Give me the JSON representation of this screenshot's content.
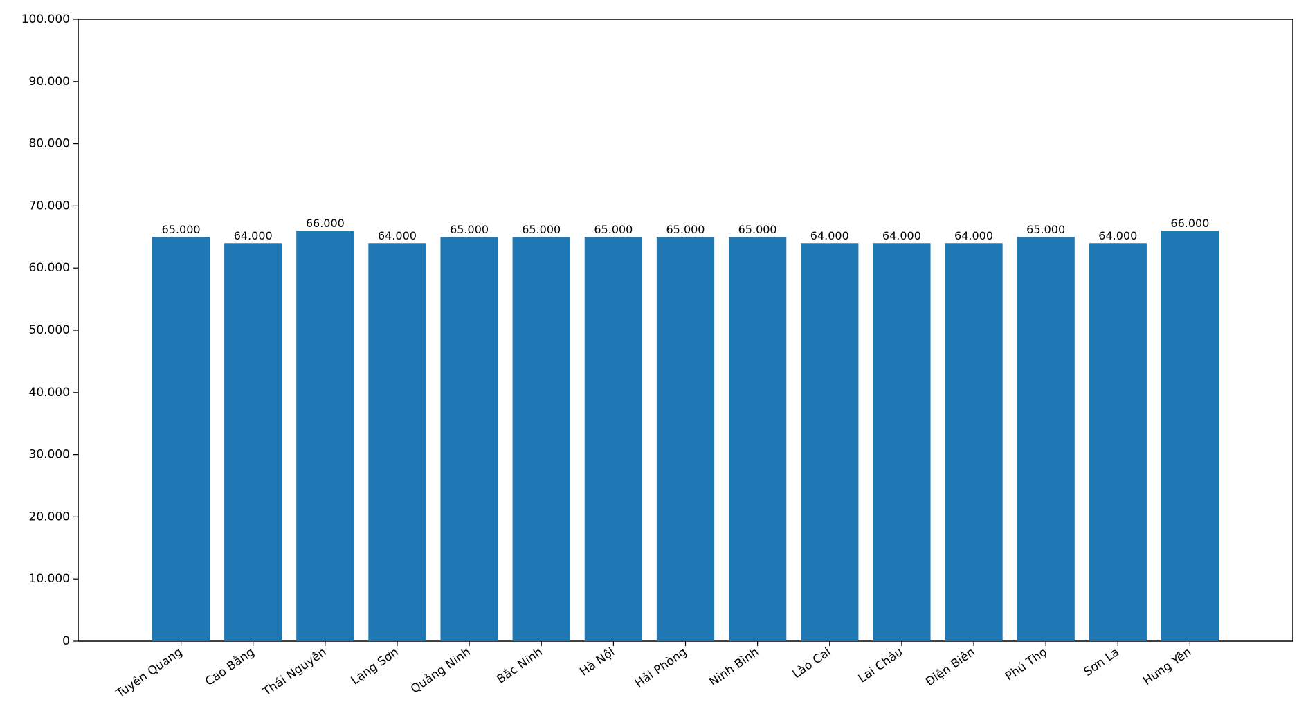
{
  "chart_data": {
    "type": "bar",
    "categories": [
      "Tuyên Quang",
      "Cao Bằng",
      "Thái Nguyên",
      "Lạng Sơn",
      "Quảng Ninh",
      "Bắc Ninh",
      "Hà Nội",
      "Hải Phòng",
      "Ninh Bình",
      "Lào Cai",
      "Lai Châu",
      "Điện Biên",
      "Phú Thọ",
      "Sơn La",
      "Hưng Yên"
    ],
    "values": [
      65000,
      64000,
      66000,
      64000,
      65000,
      65000,
      65000,
      65000,
      65000,
      64000,
      64000,
      64000,
      65000,
      64000,
      66000
    ],
    "value_labels": [
      "65.000",
      "64.000",
      "66.000",
      "64.000",
      "65.000",
      "65.000",
      "65.000",
      "65.000",
      "65.000",
      "64.000",
      "64.000",
      "64.000",
      "65.000",
      "64.000",
      "66.000"
    ],
    "color": "#1f77b4",
    "ylim": [
      0,
      100000
    ],
    "yticks": [
      0,
      {
        "value": 10000,
        "label": "10.000"
      },
      {
        "value": 20000,
        "label": "20.000"
      },
      {
        "value": 30000,
        "label": "30.000"
      },
      {
        "value": 40000,
        "label": "40.000"
      },
      {
        "value": 50000,
        "label": "50.000"
      },
      {
        "value": 60000,
        "label": "60.000"
      },
      {
        "value": 70000,
        "label": "70.000"
      },
      {
        "value": 80000,
        "label": "80.000"
      },
      {
        "value": 90000,
        "label": "90.000"
      },
      {
        "value": 100000,
        "label": "100.000"
      }
    ],
    "grid": false
  }
}
